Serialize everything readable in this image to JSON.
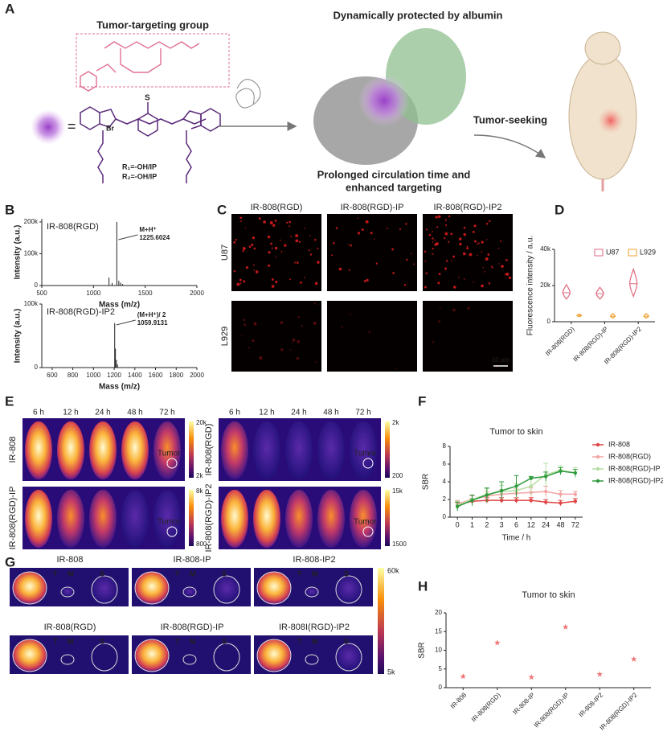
{
  "panel_labels": [
    "A",
    "B",
    "C",
    "D",
    "E",
    "F",
    "G",
    "H"
  ],
  "panel_a": {
    "targeting": "Tumor-targeting group",
    "protected": "Dynamically protected by albumin",
    "prolonged": [
      "Prolonged circulation time and",
      "enhanced targeting"
    ],
    "seeking": "Tumor-seeking",
    "r1": "R₁=-OH/IP",
    "r2": "R₂=-OH/IP",
    "br": "Br",
    "s": "S"
  },
  "panel_c": {
    "columns": [
      "IR-808(RGD)",
      "IR-808(RGD)-IP",
      "IR-808(RGD)-IP2"
    ],
    "rows": [
      "U87",
      "L929"
    ],
    "scale": "10 μm"
  },
  "panel_e": {
    "times": [
      "6 h",
      "12 h",
      "24 h",
      "48 h",
      "72 h"
    ],
    "groups": [
      {
        "label": "IR-808",
        "max": "20k",
        "min": "2k"
      },
      {
        "label": "IR-808(RGD)",
        "max": "2k",
        "min": "200"
      },
      {
        "label": "IR-808(RGD)-IP",
        "max": "8k",
        "min": "800"
      },
      {
        "label": "IR-808(RGD)-IP2",
        "max": "15k",
        "min": "1500"
      }
    ],
    "tumor": "Tumor"
  },
  "panel_g": {
    "tiles": [
      "IR-808",
      "IR-808-IP",
      "IR-808-IP2",
      "IR-808(RGD)",
      "IR-808(RGD)-IP",
      "IR-808I(RGD)-IP2"
    ],
    "organs": [
      "T",
      "M",
      "S"
    ],
    "max": "60k",
    "min": "5k"
  },
  "chart_data": [
    {
      "type": "spectrum",
      "label": "IR-808(RGD)",
      "annotation": [
        "M+H⁺",
        "1225.6024"
      ],
      "xlabel": "Mass (m/z)",
      "ylabel": "Intensity (a.u.)",
      "x": [
        1150,
        1180,
        1225.6,
        1245,
        1262,
        1280
      ],
      "values": [
        25000,
        8000,
        200000,
        15000,
        9000,
        5000
      ],
      "xlim": [
        500,
        2000
      ],
      "xticks": [
        500,
        1000,
        1500,
        2000
      ],
      "ylim": [
        0,
        210000
      ],
      "yticks": [
        0,
        {
          "value": 100000,
          "label": "100k"
        },
        {
          "value": 200000,
          "label": "200k"
        }
      ],
      "color": "#222"
    },
    {
      "type": "spectrum",
      "label": "IR-808(RGD)-IP2",
      "annotation": [
        "(M+H⁺)/ 2",
        "1059.9131"
      ],
      "xlabel": "Mass (m/z)",
      "ylabel": "Intensity (a.u.)",
      "x": [
        1205,
        1212,
        1222,
        1232
      ],
      "values": [
        70000,
        30000,
        12000,
        5000
      ],
      "xlim": [
        500,
        2000
      ],
      "xticks": [
        600,
        800,
        1000,
        1200,
        1400,
        1600,
        1800,
        2000
      ],
      "ylim": [
        0,
        100000
      ],
      "yticks": [
        0,
        {
          "value": 100000,
          "label": "100k"
        }
      ],
      "color": "#222"
    },
    {
      "type": "violin",
      "ylabel": "Fluorescence intensity / a.u.",
      "categories": [
        "IR-808(RGD)",
        "IR-808(RGD)-IP",
        "IR-808(RGD)-IP2"
      ],
      "series": [
        {
          "name": "U87",
          "color": "#e06a80",
          "values": [
            16000,
            15500,
            21000
          ],
          "low": [
            12500,
            12500,
            14000
          ],
          "high": [
            20500,
            19000,
            29000
          ]
        },
        {
          "name": "L929",
          "color": "#f0a030",
          "values": [
            3500,
            3000,
            3000
          ],
          "low": [
            2800,
            2000,
            2000
          ],
          "high": [
            4200,
            4500,
            4500
          ]
        }
      ],
      "ylim": [
        0,
        40000
      ],
      "yticks": [
        0,
        {
          "value": 20000,
          "label": "20k"
        },
        {
          "value": 40000,
          "label": "40k"
        }
      ]
    },
    {
      "type": "line",
      "title": "Tumor to skin",
      "xlabel": "Time / h",
      "ylabel": "SBR",
      "categories": [
        "0",
        "1",
        "2",
        "3",
        "6",
        "12",
        "24",
        "48",
        "72"
      ],
      "series": [
        {
          "name": "IR-808",
          "color": "#e04545",
          "values": [
            1.4,
            1.8,
            1.9,
            1.9,
            1.9,
            1.9,
            1.7,
            1.6,
            1.8
          ],
          "errors": [
            0.3,
            0.3,
            0.3,
            0.3,
            0.3,
            0.3,
            0.3,
            0.3,
            0.3
          ]
        },
        {
          "name": "IR-808(RGD)",
          "color": "#f2a5a5",
          "values": [
            1.5,
            2.0,
            2.4,
            2.6,
            2.7,
            2.8,
            2.9,
            2.6,
            2.6
          ],
          "errors": [
            0.4,
            0.4,
            0.5,
            0.5,
            0.5,
            0.5,
            0.6,
            0.4,
            0.3
          ]
        },
        {
          "name": "IR-808(RGD)-IP",
          "color": "#b4dea2",
          "values": [
            1.3,
            2.0,
            2.6,
            2.9,
            3.0,
            3.5,
            4.8,
            5.3,
            5.0
          ],
          "errors": [
            0.5,
            0.5,
            0.6,
            0.7,
            0.8,
            1.0,
            1.3,
            0.5,
            0.6
          ]
        },
        {
          "name": "IR-808(RGD)-IP2",
          "color": "#2e9a3c",
          "values": [
            1.2,
            1.9,
            2.5,
            3.0,
            3.5,
            4.4,
            4.6,
            5.2,
            5.0
          ],
          "errors": [
            0.5,
            0.6,
            0.8,
            1.0,
            1.2,
            0.2,
            0.5,
            0.4,
            0.4
          ]
        }
      ],
      "ylim": [
        0,
        8
      ],
      "yticks": [
        0,
        2,
        4,
        6,
        8
      ]
    },
    {
      "type": "scatter",
      "title": "Tumor to skin",
      "ylabel": "SBR",
      "color": "#f07575",
      "categories": [
        "IR-808",
        "IR-808(RGD)",
        "IR-808-IP",
        "IR-808(RGD)-IP",
        "IR-808-IP2",
        "IR-808(RGD)-IP2"
      ],
      "values": [
        3.0,
        12.0,
        2.8,
        16.2,
        3.6,
        7.6
      ],
      "ylim": [
        0,
        20
      ],
      "yticks": [
        0,
        5,
        10,
        15,
        20
      ]
    }
  ]
}
